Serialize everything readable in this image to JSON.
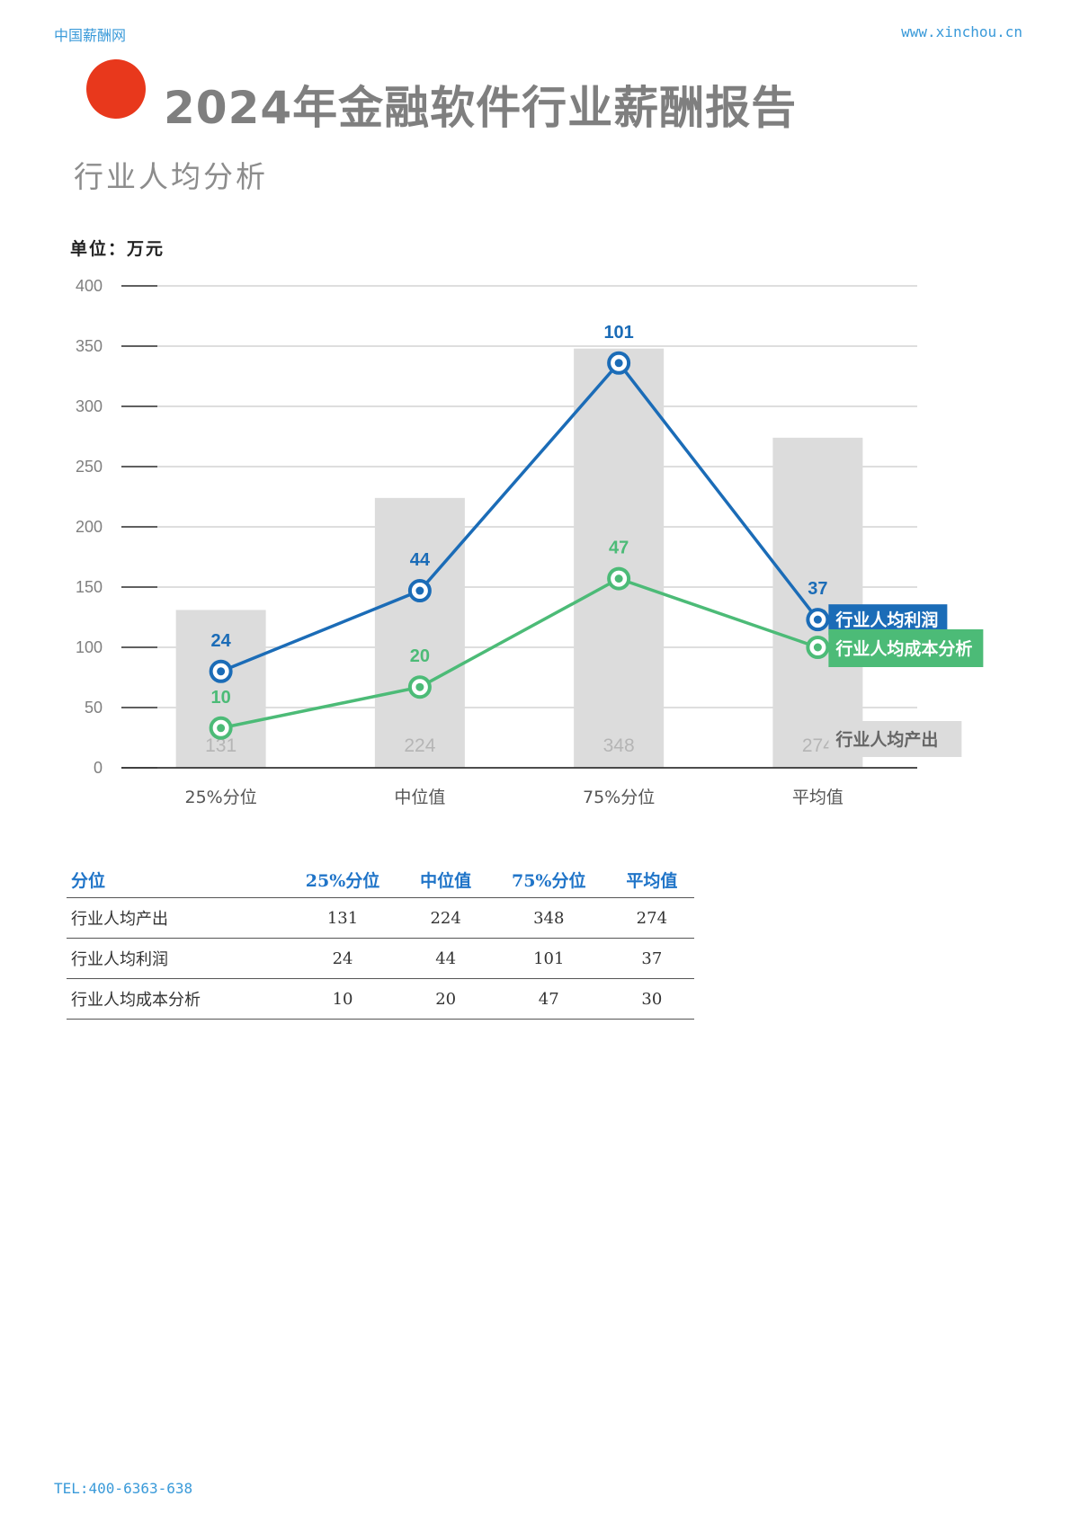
{
  "header": {
    "site_name": "中国薪酬网",
    "url": "www.xinchou.cn"
  },
  "title": "2024年金融软件行业薪酬报告",
  "subtitle": "行业人均分析",
  "unit_label": "单位：万元",
  "colors": {
    "bars": "#dcdcdc",
    "profit": "#1b6cb7",
    "cost": "#4cbb77",
    "accent_dot": "#e8381c",
    "link_blue": "#3a9ad9"
  },
  "chart_data": {
    "type": "bar",
    "categories": [
      "25%分位",
      "中位值",
      "75%分位",
      "平均值"
    ],
    "ylim": [
      0,
      400
    ],
    "yticks": [
      0,
      50,
      100,
      150,
      200,
      250,
      300,
      350,
      400
    ],
    "grid": true,
    "series": [
      {
        "name": "行业人均产出",
        "type": "bar",
        "values": [
          131,
          224,
          348,
          274
        ],
        "labels": [
          "131",
          "224",
          "348",
          "274"
        ]
      },
      {
        "name": "行业人均利润",
        "type": "line",
        "values": [
          80,
          147,
          336,
          123
        ],
        "labels": [
          "24",
          "44",
          "101",
          "37"
        ]
      },
      {
        "name": "行业人均成本分析",
        "type": "line",
        "values": [
          33,
          67,
          157,
          100
        ],
        "labels": [
          "10",
          "20",
          "47",
          "30"
        ]
      }
    ]
  },
  "table": {
    "headers": [
      "分位",
      "25%分位",
      "中位值",
      "75%分位",
      "平均值"
    ],
    "rows": [
      [
        "行业人均产出",
        "131",
        "224",
        "348",
        "274"
      ],
      [
        "行业人均利润",
        "24",
        "44",
        "101",
        "37"
      ],
      [
        "行业人均成本分析",
        "10",
        "20",
        "47",
        "30"
      ]
    ]
  },
  "footer": {
    "tel": "TEL:400-6363-638"
  }
}
